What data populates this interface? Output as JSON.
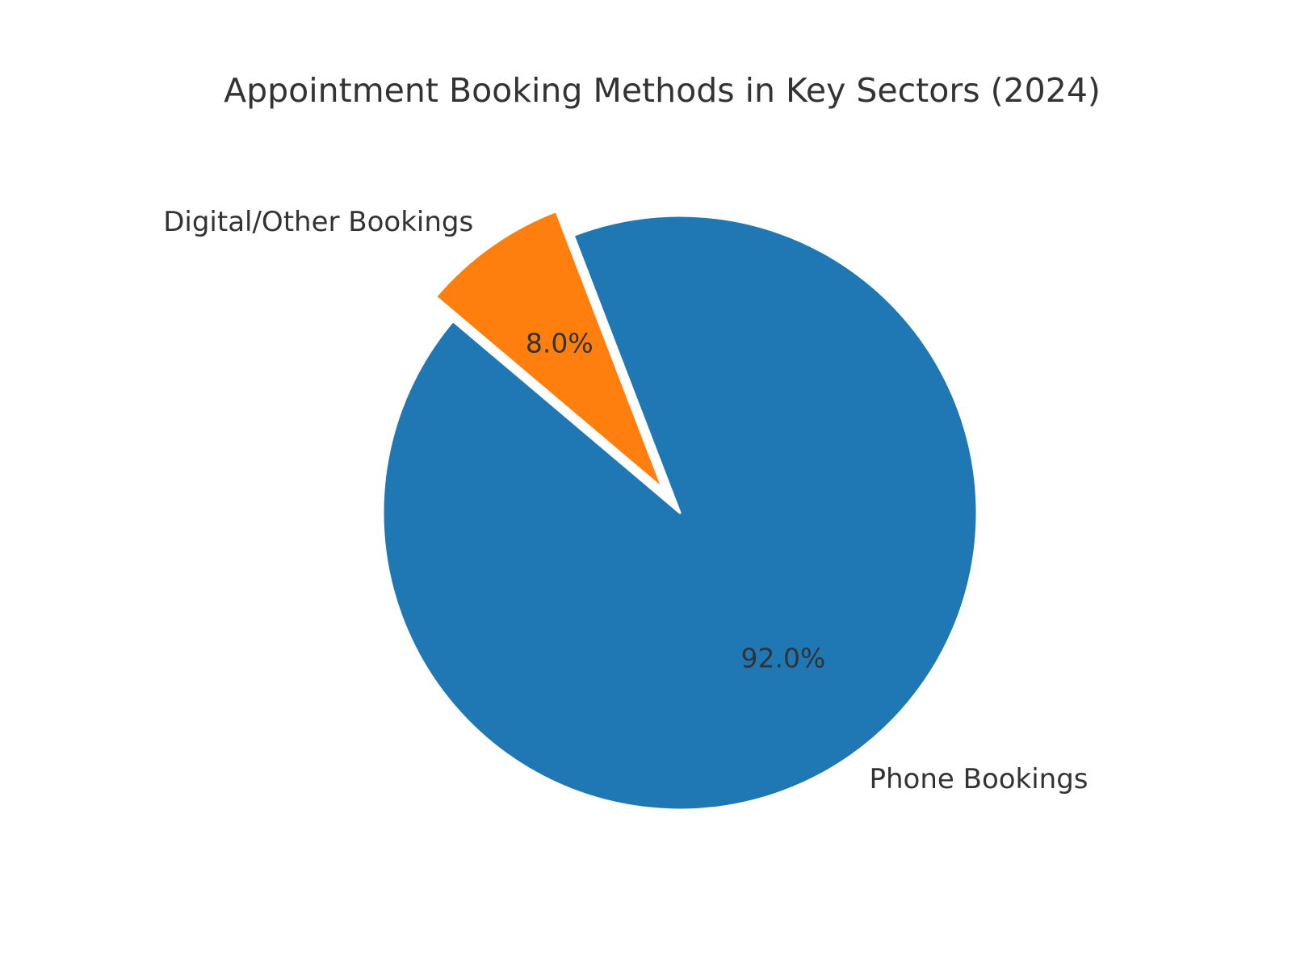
{
  "page": {
    "background": "#ffffff"
  },
  "chart_data": {
    "type": "pie",
    "title": "Appointment Booking Methods in Key Sectors (2024)",
    "slices": [
      {
        "label": "Phone Bookings",
        "value": 92.0,
        "pct_label": "92.0%",
        "color": "#1f77b4",
        "explode": 0.0
      },
      {
        "label": "Digital/Other Bookings",
        "value": 8.0,
        "pct_label": "8.0%",
        "color": "#ff7f0e",
        "explode": 0.1
      }
    ],
    "startangle": 111,
    "counterclock": false,
    "labeldistance": 1.1,
    "pctdistance": 0.6,
    "wedge_edge_color": "#ffffff",
    "wedge_edge_width": 3,
    "text_color": "#333333",
    "legend": "none",
    "background": "#ffffff"
  }
}
